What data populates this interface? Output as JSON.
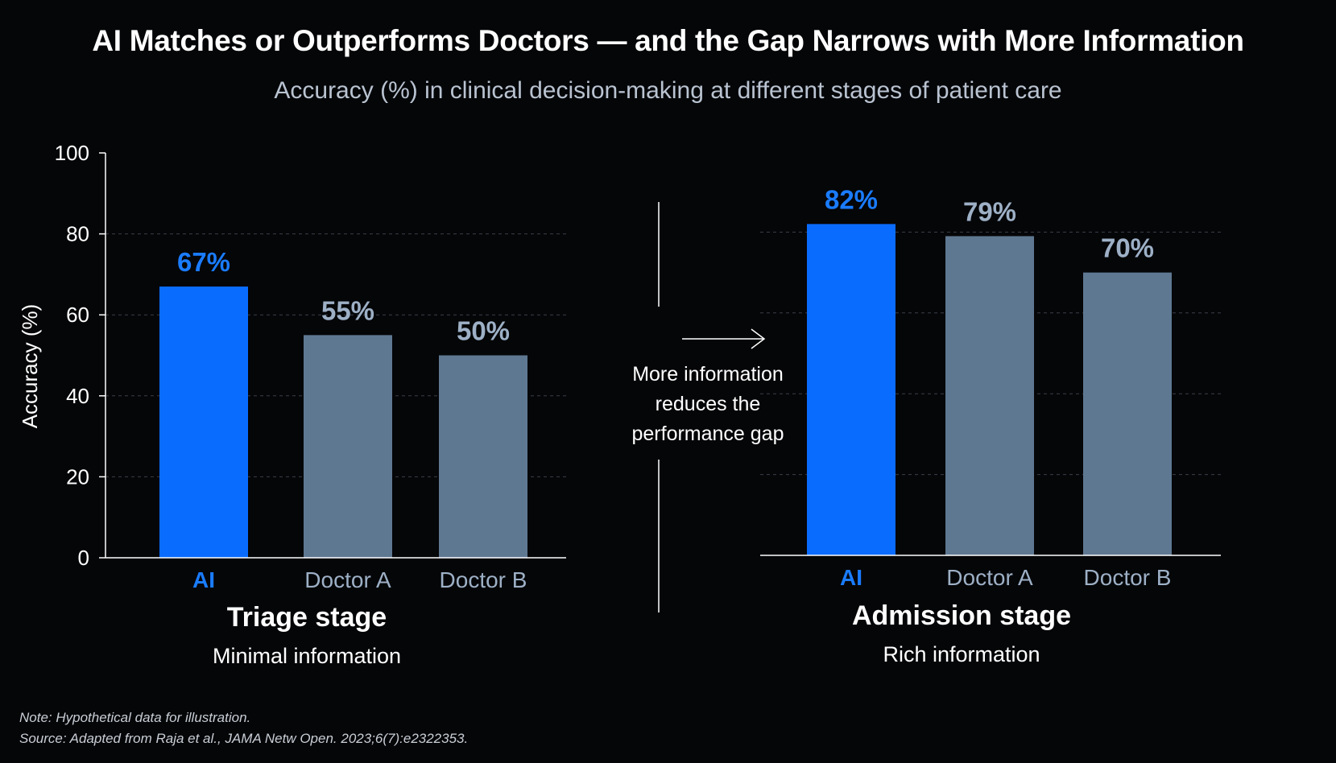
{
  "chart_data": {
    "type": "bar",
    "title": "AI Matches or Outperforms Doctors — and the Gap Narrows with More Information",
    "subtitle": "Accuracy (%) in clinical decision-making at different stages of patient care",
    "ylabel": "Accuracy (%)",
    "ylim": [
      0,
      100
    ],
    "yticks": [
      "0",
      "20",
      "40",
      "60",
      "80",
      "100"
    ],
    "grid": true,
    "colors": {
      "ai": "#0a6cff",
      "doctor": "#5f7892",
      "ai_text": "#1a7cff",
      "doctor_text": "#9db0c6"
    },
    "panels": [
      {
        "title": "Triage stage",
        "subtitle": "Minimal information",
        "categories": [
          "AI",
          "Doctor A",
          "Doctor B"
        ],
        "values": [
          67,
          55,
          50
        ],
        "value_labels": [
          "67%",
          "55%",
          "50%"
        ]
      },
      {
        "title": "Admission stage",
        "subtitle": "Rich information",
        "categories": [
          "AI",
          "Doctor A",
          "Doctor B"
        ],
        "values": [
          82,
          79,
          70
        ],
        "value_labels": [
          "82%",
          "79%",
          "70%"
        ]
      }
    ],
    "annotation": [
      "More information",
      "reduces the",
      "performance gap"
    ]
  },
  "notes": {
    "line1": "Note: Hypothetical data for illustration.",
    "line2": "Source: Adapted from Raja et al., JAMA Netw Open. 2023;6(7):e2322353."
  }
}
